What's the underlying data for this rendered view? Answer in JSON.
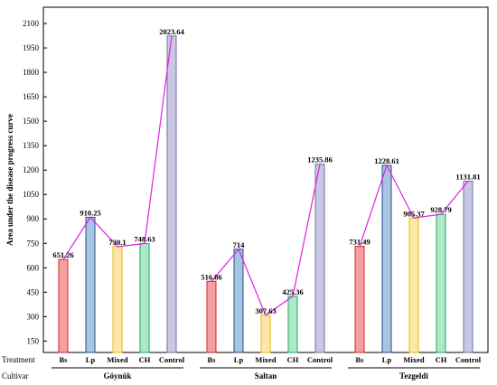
{
  "chart_data": {
    "type": "bar",
    "ylabel": "Area under the disease progress curve",
    "row_labels": {
      "treatment": "Treatment",
      "cultivar": "Cultivar"
    },
    "y_ticks": [
      150,
      300,
      450,
      600,
      750,
      900,
      1050,
      1200,
      1350,
      1500,
      1650,
      1800,
      1950,
      2100
    ],
    "ylim": [
      80,
      2200
    ],
    "treatments": [
      "Bs",
      "Lp",
      "Mixed",
      "CH",
      "Control"
    ],
    "groups": [
      {
        "cultivar": "Göynük",
        "values": [
          651.26,
          910.25,
          730.1,
          748.63,
          2023.64
        ],
        "labels": [
          "651.26",
          "910.25",
          "730.1",
          "748.63",
          "2023.64"
        ]
      },
      {
        "cultivar": "Saltan",
        "values": [
          516.86,
          714,
          307.63,
          425.36,
          1235.86
        ],
        "labels": [
          "516.86",
          "714",
          "307.63",
          "425.36",
          "1235.86"
        ]
      },
      {
        "cultivar": "Tezgeldi",
        "values": [
          731.49,
          1228.61,
          905.37,
          928.79,
          1131.81
        ],
        "labels": [
          "731.49",
          "1228.61",
          "905.37",
          "928.79",
          "1131.81"
        ]
      }
    ],
    "colors": {
      "Bs": {
        "fill": "#f5a0a0",
        "stroke": "#e02020"
      },
      "Lp": {
        "fill": "#a8c4e0",
        "stroke": "#1f4f8f"
      },
      "Mixed": {
        "fill": "#fbe8a8",
        "stroke": "#f0b800"
      },
      "CH": {
        "fill": "#aee8c8",
        "stroke": "#1aa860"
      },
      "Control": {
        "fill": "#c8c8e4",
        "stroke": "#7070a0"
      },
      "line": "#e020e0"
    },
    "grid": false,
    "legend": "none"
  }
}
